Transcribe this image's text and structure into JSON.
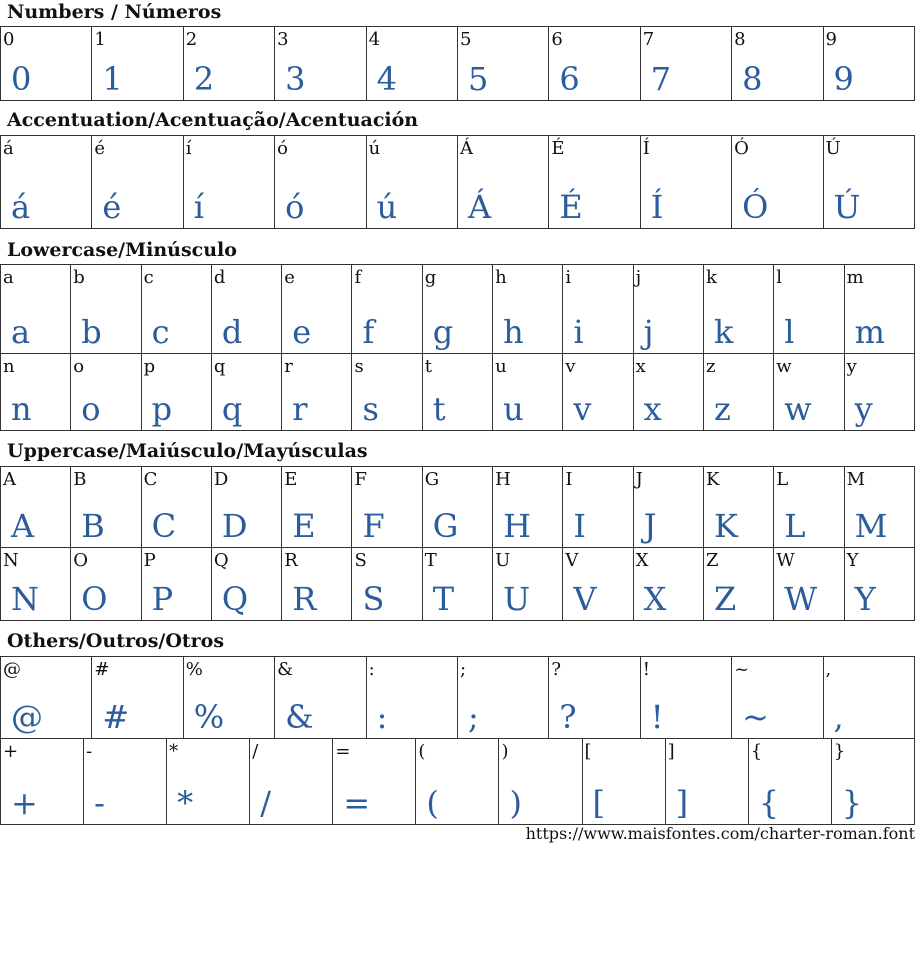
{
  "colors": {
    "sample": "#2b5c9c",
    "border": "#333333"
  },
  "sections": [
    {
      "title": "Numbers / Números",
      "tables": [
        {
          "rows": [
            [
              "0",
              "1",
              "2",
              "3",
              "4",
              "5",
              "6",
              "7",
              "8",
              "9"
            ]
          ]
        }
      ]
    },
    {
      "title": "Accentuation/Acentuação/Acentuación",
      "tables": [
        {
          "rows": [
            [
              "á",
              "é",
              "í",
              "ó",
              "ú",
              "Á",
              "É",
              "Í",
              "Ó",
              "Ú"
            ]
          ]
        }
      ]
    },
    {
      "title": "Lowercase/Minúsculo",
      "tables": [
        {
          "rows": [
            [
              "a",
              "b",
              "c",
              "d",
              "e",
              "f",
              "g",
              "h",
              "i",
              "j",
              "k",
              "l",
              "m"
            ],
            [
              "n",
              "o",
              "p",
              "q",
              "r",
              "s",
              "t",
              "u",
              "v",
              "x",
              "z",
              "w",
              "y"
            ]
          ]
        }
      ]
    },
    {
      "title": "Uppercase/Maiúsculo/Mayúsculas",
      "tables": [
        {
          "rows": [
            [
              "A",
              "B",
              "C",
              "D",
              "E",
              "F",
              "G",
              "H",
              "I",
              "J",
              "K",
              "L",
              "M"
            ],
            [
              "N",
              "O",
              "P",
              "Q",
              "R",
              "S",
              "T",
              "U",
              "V",
              "X",
              "Z",
              "W",
              "Y"
            ]
          ]
        }
      ]
    },
    {
      "title": "Others/Outros/Otros",
      "tables": [
        {
          "rows": [
            [
              "@",
              "#",
              "%",
              "&",
              ":",
              ";",
              "?",
              "!",
              "~",
              ","
            ]
          ]
        },
        {
          "rows": [
            [
              "+",
              "-",
              "*",
              "/",
              "=",
              "(",
              ")",
              "[",
              "]",
              "{",
              "}"
            ]
          ]
        }
      ]
    }
  ],
  "footer": {
    "url": "https://www.maisfontes.com/charter-roman.font"
  }
}
